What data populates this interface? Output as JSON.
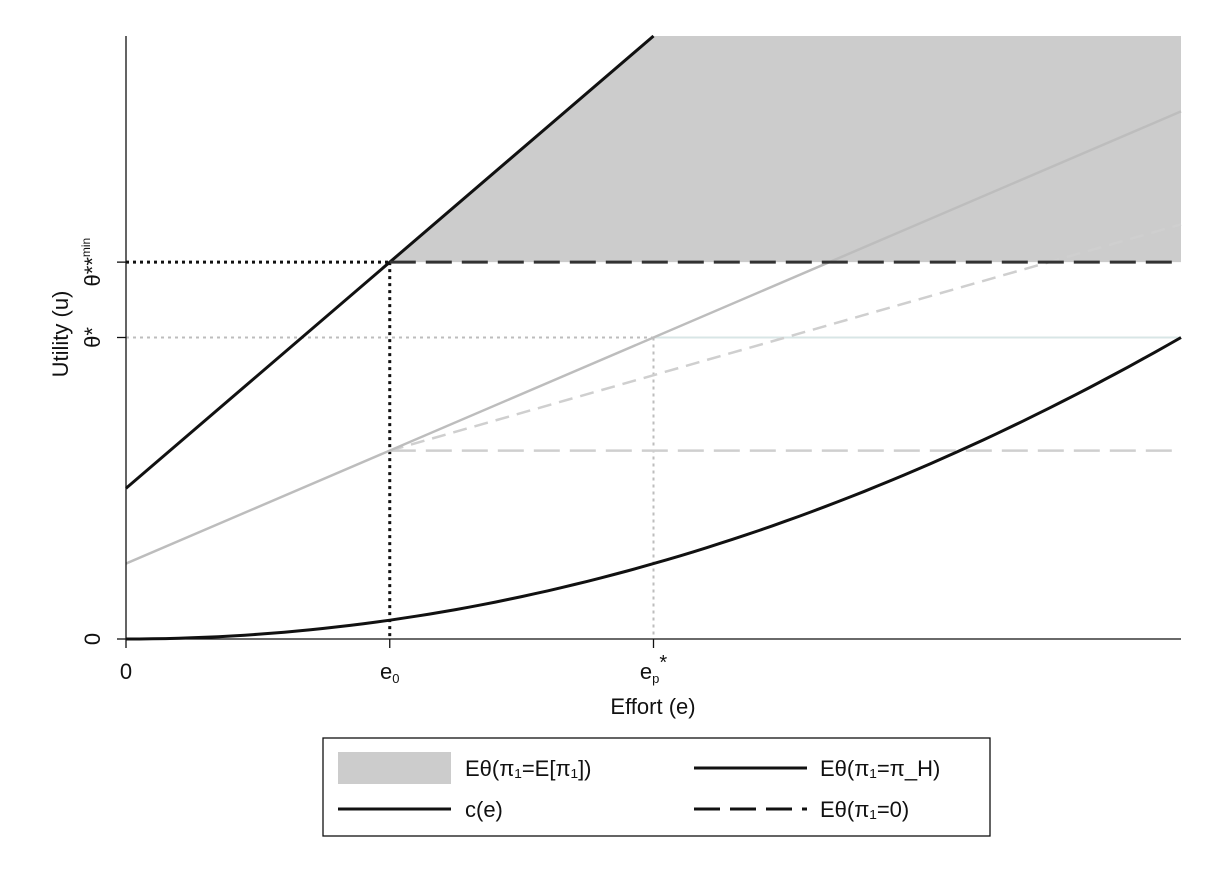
{
  "chart_data": {
    "type": "line",
    "title": "",
    "xlabel": "Effort (e)",
    "ylabel": "Utility (u)",
    "x_ticks": [
      {
        "x": 0,
        "label": "0",
        "sub": ""
      },
      {
        "x": 0.25,
        "label": "e",
        "sub": "0"
      },
      {
        "x": 0.5,
        "label": "e",
        "sub": "p",
        "sup": "*"
      }
    ],
    "y_ticks": [
      {
        "y": 0,
        "label": "0"
      },
      {
        "y": 0.5,
        "label": "θ*"
      },
      {
        "y": 0.625,
        "label": "θ**",
        "sup": "min"
      }
    ],
    "xlim": [
      0,
      1
    ],
    "ylim": [
      0,
      1
    ],
    "grid": false,
    "legend_position": "bottom",
    "series": [
      {
        "id": "high",
        "name": "Eθ(π₁=π_H)",
        "style": "solid",
        "color": "#111111",
        "x": [
          0,
          0.5
        ],
        "y": [
          0.25,
          1.0
        ]
      },
      {
        "id": "cost",
        "name": "c(e)",
        "style": "solid",
        "color": "#111111",
        "x": [
          0,
          0.1,
          0.2,
          0.3,
          0.4,
          0.5,
          0.6,
          0.7,
          0.8,
          0.9,
          1.0
        ],
        "y": [
          0,
          0.004,
          0.016,
          0.036,
          0.064,
          0.1,
          0.144,
          0.196,
          0.256,
          0.324,
          0.5
        ]
      },
      {
        "id": "zero",
        "name": "Eθ(π₁=0)",
        "style": "dashed",
        "color": "#333333",
        "x": [
          0.25,
          1.0
        ],
        "y": [
          0.625,
          0.625
        ]
      },
      {
        "id": "mid",
        "name": "",
        "style": "solid",
        "color": "#bdbdbd",
        "x": [
          0,
          1.0
        ],
        "y": [
          0.125,
          0.875
        ]
      },
      {
        "id": "mid-dashed",
        "name": "",
        "style": "dashed",
        "color": "#cfcfcf",
        "x": [
          0.25,
          1.0
        ],
        "y": [
          0.3125,
          0.6875
        ]
      },
      {
        "id": "low-flat",
        "name": "",
        "style": "dashed",
        "color": "#cfcfcf",
        "x": [
          0.25,
          1.0
        ],
        "y": [
          0.3125,
          0.3125
        ]
      }
    ],
    "area": {
      "name": "Eθ(π₁=E[π₁])",
      "color": "#cccccc"
    },
    "legend": [
      {
        "label": "Eθ(π₁=E[π₁])",
        "kind": "area"
      },
      {
        "label": "Eθ(π₁=π_H)",
        "kind": "solid"
      },
      {
        "label": "c(e)",
        "kind": "solid"
      },
      {
        "label": "Eθ(π₁=0)",
        "kind": "dashed"
      }
    ]
  }
}
